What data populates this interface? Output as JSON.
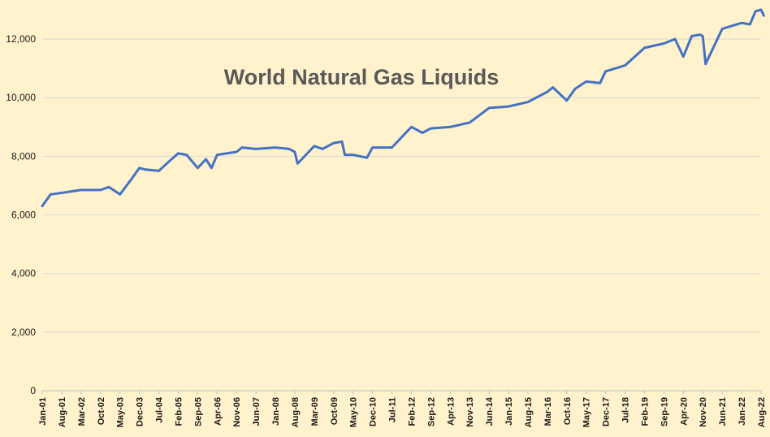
{
  "chart_data": {
    "type": "line",
    "title": "World Natural Gas Liquids",
    "xlabel": "",
    "ylabel": "",
    "ylim": [
      0,
      13000
    ],
    "grid": true,
    "legend": "none",
    "colors": {
      "background": "#fff2cc",
      "line": "#4472c4",
      "grid": "#d9d9d9"
    },
    "y_ticks": [
      {
        "value": 0,
        "label": "0"
      },
      {
        "value": 2000,
        "label": "2,000"
      },
      {
        "value": 4000,
        "label": "4,000"
      },
      {
        "value": 6000,
        "label": "6,000"
      },
      {
        "value": 8000,
        "label": "8,000"
      },
      {
        "value": 10000,
        "label": "10,000"
      },
      {
        "value": 12000,
        "label": "12,000"
      }
    ],
    "x_ticks": [
      "Jan-01",
      "Aug-01",
      "Mar-02",
      "Oct-02",
      "May-03",
      "Dec-03",
      "Jul-04",
      "Feb-05",
      "Sep-05",
      "Apr-06",
      "Nov-06",
      "Jun-07",
      "Jan-08",
      "Aug-08",
      "Mar-09",
      "Oct-09",
      "May-10",
      "Dec-10",
      "Jul-11",
      "Feb-12",
      "Sep-12",
      "Apr-13",
      "Nov-13",
      "Jun-14",
      "Jan-15",
      "Aug-15",
      "Mar-16",
      "Oct-16",
      "May-17",
      "Dec-17",
      "Jul-18",
      "Feb-19",
      "Sep-19",
      "Apr-20",
      "Nov-20",
      "Jun-21",
      "Jan-22",
      "Aug-22"
    ],
    "series": [
      {
        "name": "",
        "x": [
          "Jan-01",
          "Apr-01",
          "Aug-01",
          "Mar-02",
          "Oct-02",
          "Jan-03",
          "May-03",
          "Sep-03",
          "Dec-03",
          "Feb-04",
          "Jul-04",
          "Nov-04",
          "Feb-05",
          "May-05",
          "Sep-05",
          "Dec-05",
          "Feb-06",
          "Apr-06",
          "Nov-06",
          "Jan-07",
          "Jun-07",
          "Jan-08",
          "Jun-08",
          "Aug-08",
          "Sep-08",
          "Mar-09",
          "Jun-09",
          "Oct-09",
          "Jan-10",
          "Feb-10",
          "May-10",
          "Oct-10",
          "Dec-10",
          "Jul-11",
          "Feb-12",
          "Jun-12",
          "Sep-12",
          "Apr-13",
          "Nov-13",
          "Jun-14",
          "Jan-15",
          "Aug-15",
          "Mar-16",
          "May-16",
          "Oct-16",
          "Jan-17",
          "May-17",
          "Oct-17",
          "Dec-17",
          "Jul-18",
          "Feb-19",
          "Sep-19",
          "Jan-20",
          "Apr-20",
          "Jul-20",
          "Oct-20",
          "Nov-20",
          "Dec-20",
          "Jun-21",
          "Jan-22",
          "Apr-22",
          "Jun-22",
          "Aug-22",
          "Sep-22"
        ],
        "y": [
          6300,
          6700,
          6750,
          6850,
          6850,
          6950,
          6700,
          7200,
          7600,
          7550,
          7500,
          7850,
          8100,
          8050,
          7600,
          7900,
          7600,
          8050,
          8150,
          8300,
          8250,
          8300,
          8250,
          8150,
          7750,
          8350,
          8250,
          8450,
          8500,
          8050,
          8050,
          7950,
          8300,
          8300,
          9000,
          8800,
          8950,
          9000,
          9150,
          9650,
          9700,
          9850,
          10200,
          10350,
          9900,
          10300,
          10550,
          10500,
          10900,
          11100,
          11700,
          11850,
          12000,
          11400,
          12100,
          12150,
          12100,
          11150,
          12350,
          12550,
          12500,
          12950,
          13000,
          12800
        ]
      }
    ]
  }
}
